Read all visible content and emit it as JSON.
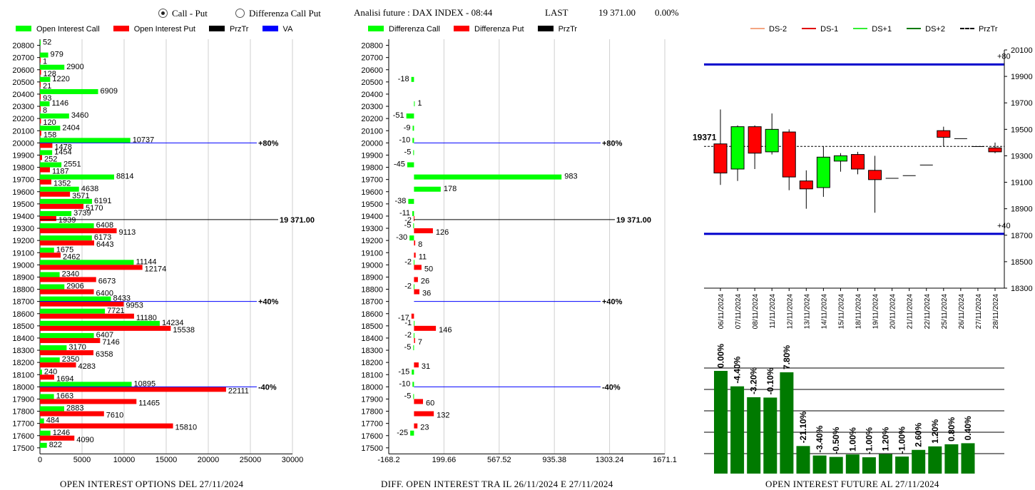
{
  "controls": {
    "radio_call_put": "Call - Put",
    "radio_diff": "Differenza Call Put",
    "analysis_label": "Analisi future : DAX INDEX - 08:44",
    "last_label": "LAST",
    "last_value": "19 371.00",
    "last_change": "0.00%"
  },
  "legend_left": [
    {
      "label": "Open Interest Call",
      "color": "#00ff00"
    },
    {
      "label": "Open Interest Put",
      "color": "#ff0000"
    },
    {
      "label": "PrzTr",
      "color": "#000000"
    },
    {
      "label": "VA",
      "color": "#0000ff"
    }
  ],
  "legend_mid": [
    {
      "label": "Differenza Call",
      "color": "#00ff00"
    },
    {
      "label": "Differenza Put",
      "color": "#ff0000"
    },
    {
      "label": "PrzTr",
      "color": "#000000"
    }
  ],
  "legend_right": [
    {
      "label": "DS-2",
      "color": "#f4a582",
      "style": "solid"
    },
    {
      "label": "DS-1",
      "color": "#e00000",
      "style": "solid"
    },
    {
      "label": "DS+1",
      "color": "#33ee33",
      "style": "solid"
    },
    {
      "label": "DS+2",
      "color": "#007a00",
      "style": "solid"
    },
    {
      "label": "PrzTr",
      "color": "#000000",
      "style": "dashed"
    }
  ],
  "titles": {
    "left": "OPEN INTEREST OPTIONS DEL 27/11/2024",
    "mid": "DIFF. OPEN INTEREST TRA IL 26/11/2024 E 27/11/2024",
    "right": "OPEN INTEREST FUTURE AL 27/11/2024"
  },
  "chart_data": [
    {
      "type": "bar",
      "orientation": "horizontal",
      "title": "OPEN INTEREST OPTIONS DEL 27/11/2024",
      "categories": [
        20800,
        20700,
        20600,
        20500,
        20400,
        20300,
        20200,
        20100,
        20000,
        19900,
        19800,
        19700,
        19600,
        19500,
        19400,
        19300,
        19200,
        19100,
        19000,
        18900,
        18800,
        18700,
        18600,
        18500,
        18400,
        18300,
        18200,
        18100,
        18000,
        17900,
        17800,
        17700,
        17600,
        17500
      ],
      "series": [
        {
          "name": "Open Interest Call",
          "color": "#00ff00",
          "values": [
            52,
            979,
            2900,
            1220,
            6909,
            1146,
            3460,
            2404,
            10737,
            1454,
            2551,
            8814,
            4638,
            6191,
            3739,
            6408,
            6173,
            1675,
            11144,
            2340,
            2906,
            8433,
            7721,
            14234,
            6407,
            3170,
            2350,
            240,
            10895,
            1663,
            2883,
            484,
            1246,
            822
          ]
        },
        {
          "name": "Open Interest Put",
          "color": "#ff0000",
          "values": [
            null,
            1,
            128,
            21,
            93,
            8,
            120,
            158,
            1478,
            252,
            1187,
            1352,
            3571,
            5170,
            1939,
            9113,
            6443,
            2462,
            12174,
            6673,
            6400,
            9953,
            11180,
            15538,
            7146,
            6358,
            4283,
            1694,
            22111,
            11465,
            7610,
            15810,
            4090,
            null
          ]
        }
      ],
      "xlim": [
        0,
        30000
      ],
      "xticks": [
        "0",
        "5000",
        "10000",
        "15000",
        "20000",
        "25000",
        "30000"
      ],
      "reference_lines": [
        {
          "level": 20000,
          "label": "+80%",
          "color": "#0000ff"
        },
        {
          "level": 19371,
          "label": "19 371.00",
          "color": "#000000"
        },
        {
          "level": 18700,
          "label": "+40%",
          "color": "#0000ff"
        },
        {
          "level": 18000,
          "label": "-40%",
          "color": "#0000ff"
        }
      ]
    },
    {
      "type": "bar",
      "orientation": "horizontal",
      "title": "DIFF. OPEN INTEREST TRA IL 26/11/2024 E 27/11/2024",
      "categories": [
        20800,
        20700,
        20600,
        20500,
        20400,
        20300,
        20200,
        20100,
        20000,
        19900,
        19800,
        19700,
        19600,
        19500,
        19400,
        19300,
        19200,
        19100,
        19000,
        18900,
        18800,
        18700,
        18600,
        18500,
        18400,
        18300,
        18200,
        18100,
        18000,
        17900,
        17800,
        17700,
        17600,
        17500
      ],
      "series": [
        {
          "name": "Differenza Call",
          "color": "#00ff00",
          "values": [
            null,
            null,
            null,
            -18,
            null,
            1,
            -51,
            -9,
            -10,
            -5,
            -45,
            983,
            178,
            -38,
            -11,
            -5,
            -30,
            null,
            -2,
            null,
            -2,
            null,
            null,
            -1,
            -2,
            -5,
            null,
            -15,
            -10,
            -5,
            null,
            null,
            -25,
            null
          ]
        },
        {
          "name": "Differenza Put",
          "color": "#ff0000",
          "values": [
            null,
            null,
            null,
            null,
            null,
            null,
            null,
            null,
            null,
            null,
            null,
            null,
            null,
            null,
            -2,
            126,
            8,
            11,
            50,
            26,
            36,
            null,
            -17,
            146,
            7,
            null,
            31,
            null,
            null,
            60,
            132,
            23,
            null,
            null
          ]
        }
      ],
      "xlim": [
        -168.2,
        1671.1
      ],
      "xticks": [
        "-168.2",
        "199.66",
        "567.52",
        "935.38",
        "1303.24",
        "1671.1"
      ],
      "reference_lines": [
        {
          "level": 20000,
          "label": "+80%",
          "color": "#0000ff"
        },
        {
          "level": 19371,
          "label": "19 371.00",
          "color": "#000000"
        },
        {
          "level": 18700,
          "label": "+40%",
          "color": "#0000ff"
        },
        {
          "level": 18000,
          "label": "-40%",
          "color": "#0000ff"
        }
      ]
    },
    {
      "type": "candlestick",
      "categories": [
        "06/11/2024",
        "07/11/2024",
        "08/11/2024",
        "11/11/2024",
        "12/11/2024",
        "13/11/2024",
        "14/11/2024",
        "15/11/2024",
        "18/11/2024",
        "19/11/2024",
        "20/11/2024",
        "21/11/2024",
        "22/11/2024",
        "25/11/2024",
        "26/11/2024",
        "27/11/2024",
        "28/11/2024"
      ],
      "candles": [
        {
          "open": 19390,
          "close": 19170,
          "high": 19650,
          "low": 19080
        },
        {
          "open": 19200,
          "close": 19520,
          "high": 19530,
          "low": 19110
        },
        {
          "open": 19520,
          "close": 19320,
          "high": 19530,
          "low": 19200
        },
        {
          "open": 19330,
          "close": 19500,
          "high": 19620,
          "low": 19310
        },
        {
          "open": 19480,
          "close": 19140,
          "high": 19500,
          "low": 19040
        },
        {
          "open": 19110,
          "close": 19050,
          "high": 19190,
          "low": 18900
        },
        {
          "open": 19060,
          "close": 19290,
          "high": 19370,
          "low": 18990
        },
        {
          "open": 19260,
          "close": 19300,
          "high": 19320,
          "low": 19180
        },
        {
          "open": 19310,
          "close": 19200,
          "high": 19330,
          "low": 19160
        },
        {
          "open": 19190,
          "close": 19120,
          "high": 19300,
          "low": 18870
        },
        {
          "open": 19130,
          "close": 19130,
          "high": 19130,
          "low": 19130
        },
        {
          "open": 19150,
          "close": 19150,
          "high": 19150,
          "low": 19150
        },
        {
          "open": 19230,
          "close": 19230,
          "high": 19230,
          "low": 19230
        },
        {
          "open": 19490,
          "close": 19440,
          "high": 19520,
          "low": 19370
        },
        {
          "open": 19430,
          "close": 19430,
          "high": 19430,
          "low": 19430
        },
        {
          "open": 19370,
          "close": 19370,
          "high": 19370,
          "low": 19370
        },
        {
          "open": 19360,
          "close": 19330,
          "high": 19400,
          "low": 19320
        }
      ],
      "ylim": [
        18300,
        20100
      ],
      "yticks": [
        20100,
        19900,
        19700,
        19500,
        19300,
        19100,
        18900,
        18700,
        18500,
        18300
      ],
      "reference_lines": [
        {
          "level": 19990,
          "label": "+80",
          "color": "#0000cc"
        },
        {
          "level": 18710,
          "label": "+40",
          "color": "#0000cc"
        },
        {
          "level": 19371,
          "label": "19371",
          "color": "#000000",
          "style": "dashed"
        }
      ]
    },
    {
      "type": "bar",
      "title": "OPEN INTEREST FUTURE AL 27/11/2024",
      "categories": [
        "06/11/2024",
        "07/11/2024",
        "08/11/2024",
        "11/11/2024",
        "12/11/2024",
        "13/11/2024",
        "14/11/2024",
        "15/11/2024",
        "18/11/2024",
        "19/11/2024",
        "20/11/2024",
        "21/11/2024",
        "22/11/2024",
        "25/11/2024",
        "26/11/2024",
        "27/11/2024",
        "28/11/2024"
      ],
      "labels": [
        "0.00%",
        "-4.40%",
        "-3.20%",
        "-0.10%",
        "7.80%",
        "-21.10%",
        "-3.40%",
        "-0.50%",
        "1.00%",
        "-1.00%",
        "1.20%",
        "-1.00%",
        "2.60%",
        "1.20%",
        "0.80%",
        "0.40%"
      ],
      "values": [
        100,
        95.6,
        92.5,
        92.4,
        99.6,
        78.6,
        75.9,
        75.5,
        76.2,
        75.4,
        76.3,
        75.6,
        77.5,
        78.5,
        79.1,
        79.4
      ],
      "color": "#007a00"
    }
  ]
}
